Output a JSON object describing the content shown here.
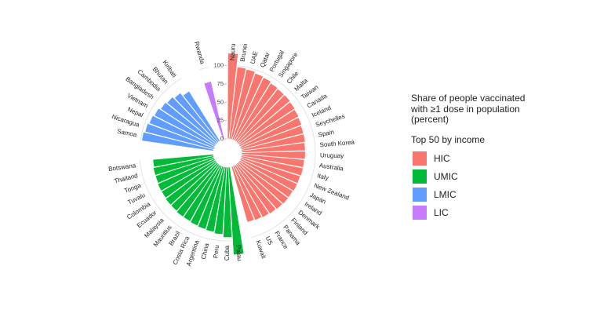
{
  "chart_data": {
    "type": "radial_bar",
    "legend_title": [
      "Share of people vaccinated",
      "with ≥1 dose in population",
      "(percent)"
    ],
    "legend_subtitle": "Top 50 by income",
    "ylim": [
      0,
      120
    ],
    "yticks": [
      0,
      25,
      50,
      75,
      100
    ],
    "series": [
      {
        "name": "HIC",
        "color": "#F8766D",
        "categories": [
          "Nauru",
          "Brunei",
          "UAE",
          "Qatar",
          "Portugal",
          "Singapore",
          "Chile",
          "Malta",
          "Taiwan",
          "Canada",
          "Iceland",
          "Seychelles",
          "Spain",
          "South Korea",
          "Uruguay",
          "Australia",
          "Italy",
          "New Zealand",
          "Japan",
          "Ireland",
          "Denmark",
          "Finland",
          "Panama",
          "France",
          "US",
          "Kuwait"
        ],
        "values": [
          117,
          99,
          98,
          96,
          95,
          93,
          92,
          92,
          91,
          90,
          89,
          88,
          88,
          87,
          87,
          86,
          86,
          85,
          85,
          84,
          84,
          83,
          82,
          81,
          80,
          79
        ]
      },
      {
        "name": "UMIC",
        "color": "#00BA38",
        "categories": [
          "Palau",
          "Cuba",
          "Peru",
          "China",
          "Argentina",
          "Costa Rica",
          "Brazil",
          "Mauritius",
          "Malaysia",
          "Ecuador",
          "Colombia",
          "Tuvalu",
          "Tonga",
          "Thailand",
          "Botswana"
        ],
        "values": [
          120,
          96,
          92,
          90,
          89,
          88,
          87,
          87,
          86,
          86,
          85,
          85,
          84,
          84,
          83
        ]
      },
      {
        "name": "LMIC",
        "color": "#619CFF",
        "categories": [
          "Samoa",
          "Nicaragua",
          "Nepal",
          "Vietnam",
          "Bangladesh",
          "Cambodia",
          "Bhutan",
          "Kiribati"
        ],
        "values": [
          99,
          97,
          95,
          93,
          90,
          88,
          85,
          80
        ]
      },
      {
        "name": "LIC",
        "color": "#C77CFF",
        "categories": [
          "Rwanda"
        ],
        "values": [
          81
        ]
      }
    ]
  }
}
